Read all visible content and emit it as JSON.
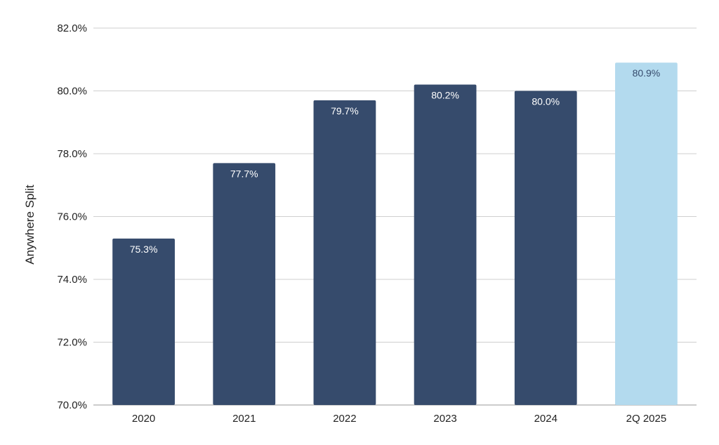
{
  "chart_data": {
    "type": "bar",
    "title": "",
    "xlabel": "",
    "ylabel": "Anywhere Split",
    "categories": [
      "2020",
      "2021",
      "2022",
      "2023",
      "2024",
      "2Q 2025"
    ],
    "values": [
      75.3,
      77.7,
      79.7,
      80.2,
      80.0,
      80.9
    ],
    "value_labels": [
      "75.3%",
      "77.7%",
      "79.7%",
      "80.2%",
      "80.0%",
      "80.9%"
    ],
    "ylim": [
      70.0,
      82.0
    ],
    "yticks": [
      70.0,
      72.0,
      74.0,
      76.0,
      78.0,
      80.0,
      82.0
    ],
    "ytick_labels": [
      "70.0%",
      "72.0%",
      "74.0%",
      "76.0%",
      "78.0%",
      "80.0%",
      "82.0%"
    ],
    "grid": true,
    "legend": "none",
    "colors": {
      "bar": "#364b6c",
      "highlight_bar": "#b3daee",
      "label_on_dark": "#ffffff",
      "label_on_light": "#364b6c"
    },
    "highlight_index": 5
  }
}
